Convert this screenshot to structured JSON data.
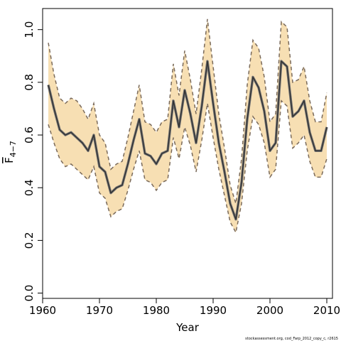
{
  "chart_data": {
    "type": "area",
    "xlabel": "Year",
    "ylabel": "F",
    "ylabel_sub": "4−7",
    "xlim": [
      1960,
      2011
    ],
    "ylim": [
      -0.02,
      1.08
    ],
    "x_ticks": [
      1960,
      1970,
      1980,
      1990,
      2000,
      2010
    ],
    "y_ticks": [
      0.0,
      0.2,
      0.4,
      0.6,
      0.8,
      1.0
    ],
    "x_tick_labels": [
      "1960",
      "1970",
      "1980",
      "1990",
      "2000",
      "2010"
    ],
    "y_tick_labels": [
      "0.0",
      "0.2",
      "0.4",
      "0.6",
      "0.8",
      "1.0"
    ],
    "grid": false,
    "colors": {
      "band": "#f7dfb3",
      "bounds": "#7a6a5a",
      "estimate": "#333333"
    },
    "x": [
      1961,
      1962,
      1963,
      1964,
      1965,
      1966,
      1967,
      1968,
      1969,
      1970,
      1971,
      1972,
      1973,
      1974,
      1975,
      1976,
      1977,
      1978,
      1979,
      1980,
      1981,
      1982,
      1983,
      1984,
      1985,
      1986,
      1987,
      1988,
      1989,
      1990,
      1991,
      1992,
      1993,
      1994,
      1995,
      1996,
      1997,
      1998,
      1999,
      2000,
      2001,
      2002,
      2003,
      2004,
      2005,
      2006,
      2007,
      2008,
      2009,
      2010
    ],
    "series": [
      {
        "role": "estimate",
        "values": [
          0.79,
          0.7,
          0.62,
          0.6,
          0.61,
          0.59,
          0.57,
          0.54,
          0.6,
          0.48,
          0.46,
          0.38,
          0.4,
          0.41,
          0.49,
          0.58,
          0.66,
          0.53,
          0.52,
          0.49,
          0.53,
          0.54,
          0.73,
          0.63,
          0.77,
          0.68,
          0.57,
          0.71,
          0.88,
          0.72,
          0.57,
          0.46,
          0.34,
          0.28,
          0.42,
          0.66,
          0.82,
          0.78,
          0.69,
          0.54,
          0.57,
          0.88,
          0.86,
          0.67,
          0.69,
          0.73,
          0.61,
          0.54,
          0.54,
          0.63
        ]
      },
      {
        "role": "upper",
        "values": [
          0.95,
          0.83,
          0.74,
          0.72,
          0.74,
          0.73,
          0.7,
          0.66,
          0.72,
          0.6,
          0.57,
          0.47,
          0.49,
          0.5,
          0.59,
          0.69,
          0.79,
          0.65,
          0.64,
          0.61,
          0.65,
          0.66,
          0.87,
          0.75,
          0.92,
          0.81,
          0.68,
          0.85,
          1.04,
          0.86,
          0.68,
          0.55,
          0.41,
          0.34,
          0.51,
          0.79,
          0.96,
          0.93,
          0.82,
          0.65,
          0.68,
          1.03,
          1.01,
          0.8,
          0.81,
          0.86,
          0.73,
          0.65,
          0.65,
          0.76
        ]
      },
      {
        "role": "lower",
        "values": [
          0.64,
          0.57,
          0.51,
          0.48,
          0.49,
          0.47,
          0.45,
          0.43,
          0.48,
          0.38,
          0.36,
          0.29,
          0.31,
          0.32,
          0.39,
          0.47,
          0.54,
          0.43,
          0.42,
          0.39,
          0.42,
          0.43,
          0.59,
          0.51,
          0.63,
          0.56,
          0.46,
          0.58,
          0.72,
          0.59,
          0.47,
          0.37,
          0.27,
          0.23,
          0.34,
          0.54,
          0.67,
          0.64,
          0.57,
          0.44,
          0.47,
          0.73,
          0.71,
          0.55,
          0.57,
          0.6,
          0.5,
          0.44,
          0.44,
          0.51
        ]
      }
    ]
  },
  "footnote": "stockassessment.org, cod_Farp_2012_copy_c, r2615"
}
